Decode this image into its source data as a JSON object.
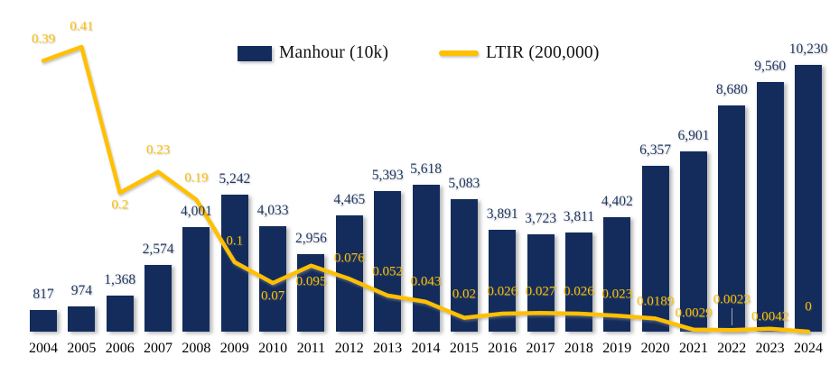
{
  "chart": {
    "legend": {
      "manhour_label": "Manhour (10k)",
      "ltir_label": "LTIR (200,000)"
    },
    "colors": {
      "bar": "#132C5C",
      "line": "#FFC000",
      "bar_label": "#1F3864",
      "line_label": "#FFC000",
      "axis_label": "#000000"
    }
  },
  "chart_data": {
    "type": "combo-bar-line",
    "title": "",
    "xlabel": "",
    "ylabel": "",
    "grid": false,
    "axes_visible": false,
    "legend_position": "top-center",
    "categories": [
      "2004",
      "2005",
      "2006",
      "2007",
      "2008",
      "2009",
      "2010",
      "2011",
      "2012",
      "2013",
      "2014",
      "2015",
      "2016",
      "2017",
      "2018",
      "2019",
      "2020",
      "2021",
      "2022",
      "2023",
      "2024"
    ],
    "series": [
      {
        "name": "Manhour (10k)",
        "type": "bar",
        "color": "#132C5C",
        "ylim": [
          0,
          10230
        ],
        "values": [
          817,
          974,
          1368,
          2574,
          4001,
          5242,
          4033,
          2956,
          4465,
          5393,
          5618,
          5083,
          3891,
          3723,
          3811,
          4402,
          6357,
          6901,
          8680,
          9560,
          10230
        ],
        "data_labels": [
          "817",
          "974",
          "1,368",
          "2,574",
          "4,001",
          "5,242",
          "4,033",
          "2,956",
          "4,465",
          "5,393",
          "5,618",
          "5,083",
          "3,891",
          "3,723",
          "3,811",
          "4,402",
          "6,357",
          "6,901",
          "8,680",
          "9,560",
          "10,230"
        ]
      },
      {
        "name": "LTIR (200,000)",
        "type": "line",
        "color": "#FFC000",
        "ylim": [
          0,
          0.41
        ],
        "values": [
          0.39,
          0.41,
          0.2,
          0.23,
          0.19,
          0.1,
          0.07,
          0.095,
          0.076,
          0.052,
          0.043,
          0.02,
          0.026,
          0.027,
          0.026,
          0.023,
          0.0189,
          0.0029,
          0.0023,
          0.0042,
          0
        ],
        "data_labels": [
          "0.39",
          "0.41",
          "0.2",
          "0.23",
          "0.19",
          "0.1",
          "0.07",
          "0.095",
          "0.076",
          "0.052",
          "0.043",
          "0.02",
          "0.026",
          "0.027",
          "0.026",
          "0.023",
          "0.0189",
          "0.0029",
          "0.0023",
          "0.0042",
          "0"
        ]
      }
    ]
  }
}
